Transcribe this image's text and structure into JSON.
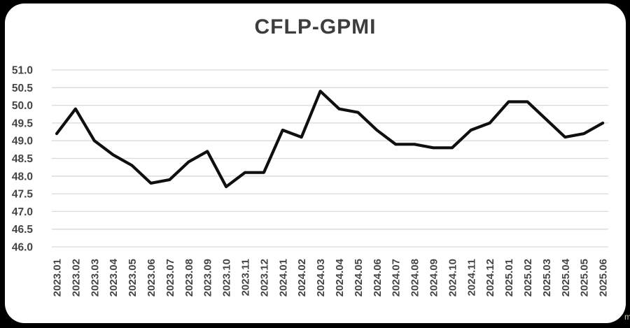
{
  "page": {
    "background": "#000000",
    "card_color": "#ffffff",
    "watermark_fragment": "m"
  },
  "chart_data": {
    "type": "line",
    "title": "CFLP-GPMI",
    "series_name": "CFLP-GPMI",
    "categories": [
      "2023.01",
      "2023.02",
      "2023.03",
      "2023.04",
      "2023.05",
      "2023.06",
      "2023.07",
      "2023.08",
      "2023.09",
      "2023.10",
      "2023.11",
      "2023.12",
      "2024.01",
      "2024.02",
      "2024.03",
      "2024.04",
      "2024.05",
      "2024.06",
      "2024.07",
      "2024.08",
      "2024.09",
      "2024.10",
      "2024.11",
      "2024.12",
      "2025.01",
      "2025.02",
      "2025.03",
      "2025.04",
      "2025.05",
      "2025.06"
    ],
    "values": [
      49.2,
      49.9,
      49.0,
      48.6,
      48.3,
      47.8,
      47.9,
      48.4,
      48.7,
      47.7,
      48.1,
      48.1,
      49.3,
      49.1,
      50.4,
      49.9,
      49.8,
      49.3,
      48.9,
      48.9,
      48.8,
      48.8,
      49.3,
      49.5,
      50.1,
      50.1,
      49.6,
      49.1,
      49.2,
      49.5
    ],
    "ylim": [
      46.0,
      51.0
    ],
    "ytick_step": 0.5,
    "y_ticks": [
      "51.0",
      "50.5",
      "50.0",
      "49.5",
      "49.0",
      "48.5",
      "48.0",
      "47.5",
      "47.0",
      "46.5",
      "46.0"
    ],
    "xlabel": "",
    "ylabel": "",
    "grid": true,
    "legend": false,
    "line_color": "#0f0f0f",
    "gridline_color": "#d9d9d9",
    "label_color": "#444444",
    "title_color": "#3d3d3d"
  }
}
